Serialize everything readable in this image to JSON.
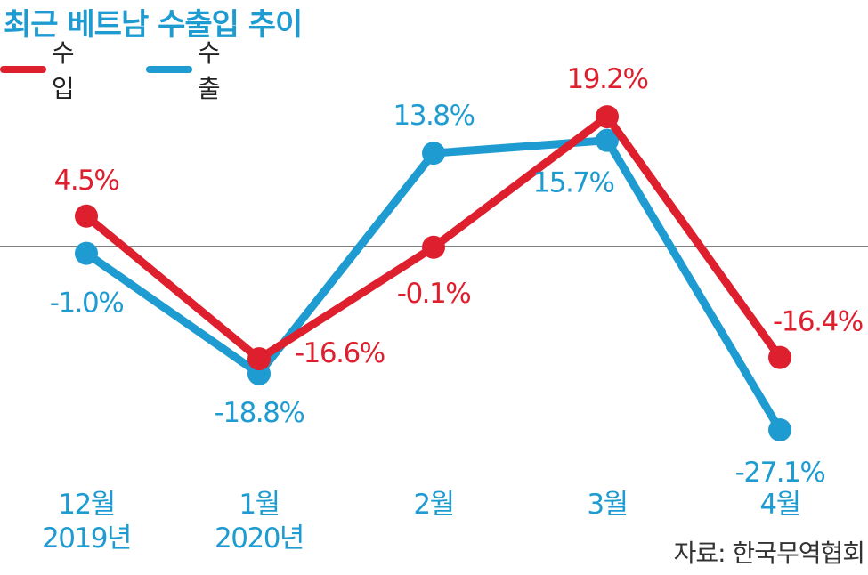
{
  "title": "최근 베트남 수출입 추이",
  "source": "자료: 한국무역협회",
  "colors": {
    "import": "#dd1f2e",
    "export": "#1e9bd0",
    "title": "#1e9bd0",
    "axis": "#555555"
  },
  "chart_data": {
    "type": "line",
    "categories": [
      [
        "12월",
        "2019년"
      ],
      [
        "1월",
        "2020년"
      ],
      [
        "2월"
      ],
      [
        "3월"
      ],
      [
        "4월"
      ]
    ],
    "series": [
      {
        "name": "수입",
        "color": "#dd1f2e",
        "values": [
          4.5,
          -16.6,
          -0.1,
          19.2,
          -16.4
        ],
        "labels": [
          "4.5%",
          "-16.6%",
          "-0.1%",
          "19.2%",
          "-16.4%"
        ]
      },
      {
        "name": "수출",
        "color": "#1e9bd0",
        "values": [
          -1.0,
          -18.8,
          13.8,
          15.7,
          -27.1
        ],
        "labels": [
          "-1.0%",
          "-18.8%",
          "13.8%",
          "15.7%",
          "-27.1%"
        ]
      }
    ],
    "ylim": [
      -30,
      20
    ],
    "zero_line": true,
    "grid": false,
    "legend": "top-left"
  }
}
